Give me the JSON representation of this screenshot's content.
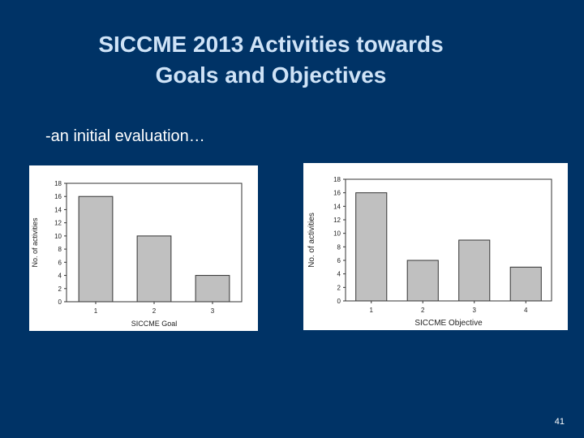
{
  "slide": {
    "title": "SICCME 2013 Activities towards\nGoals and Objectives",
    "subtitle": "-an initial evaluation…",
    "page_number": "41",
    "background_color": "#003366"
  },
  "chart_data": [
    {
      "type": "bar",
      "categories": [
        "1",
        "2",
        "3"
      ],
      "values": [
        16,
        10,
        4
      ],
      "xlabel": "SICCME Goal",
      "ylabel": "No. of activities",
      "ylim": [
        0,
        18
      ],
      "yticks": [
        "0",
        "2",
        "4",
        "6",
        "8",
        "10",
        "12",
        "14",
        "16",
        "18"
      ],
      "bar_color": "#c0c0c0",
      "grid": false
    },
    {
      "type": "bar",
      "categories": [
        "1",
        "2",
        "3",
        "4"
      ],
      "values": [
        16,
        6,
        9,
        5
      ],
      "xlabel": "SICCME Objective",
      "ylabel": "No. of activities",
      "ylim": [
        0,
        18
      ],
      "yticks": [
        "0",
        "2",
        "4",
        "6",
        "8",
        "10",
        "12",
        "14",
        "16",
        "18"
      ],
      "bar_color": "#c0c0c0",
      "grid": false
    }
  ]
}
